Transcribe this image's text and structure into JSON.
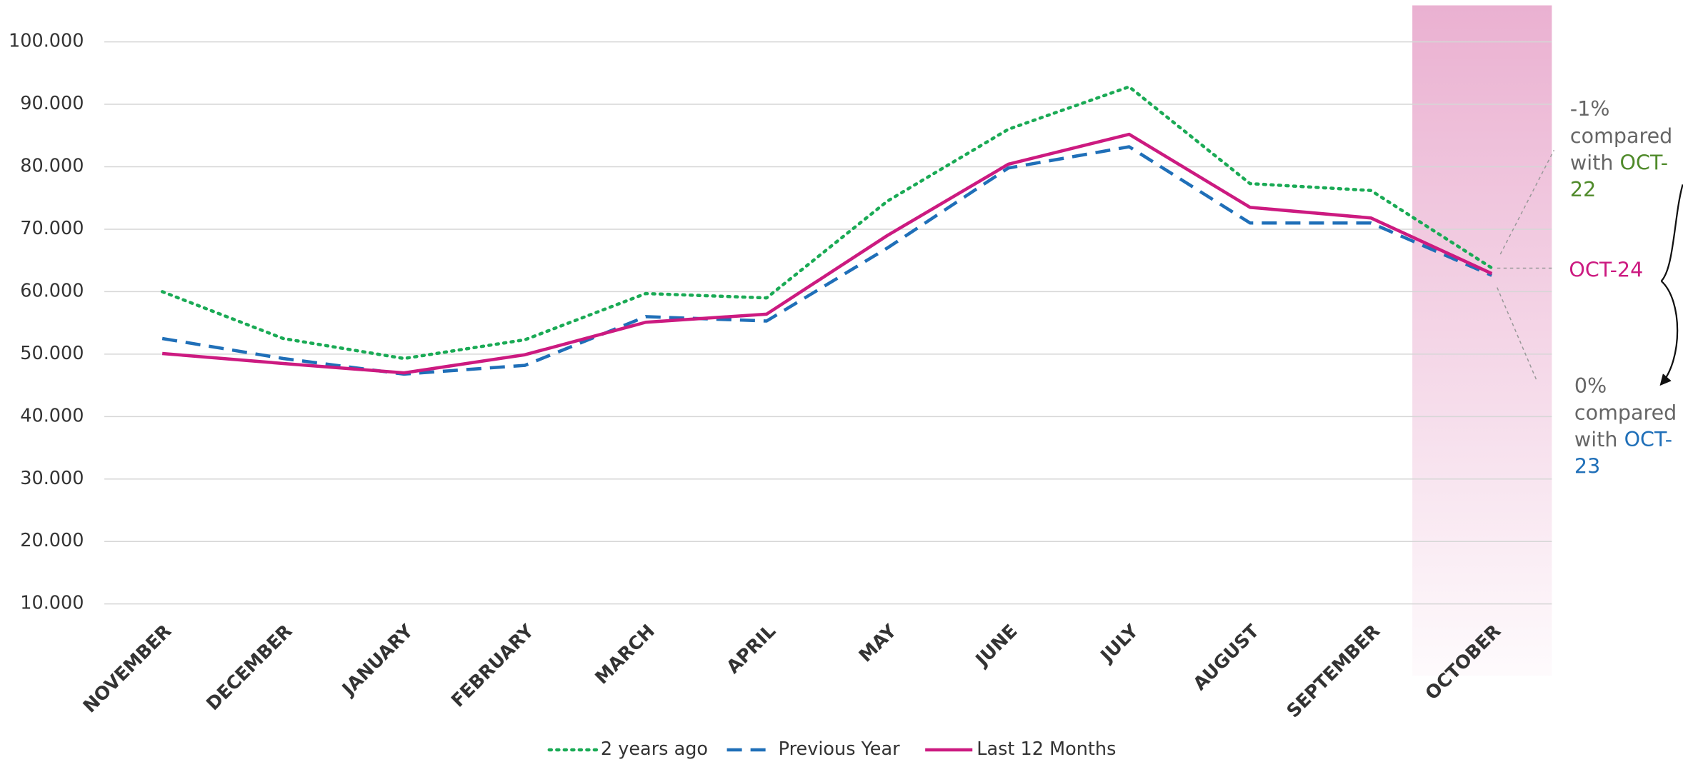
{
  "chart_data": {
    "type": "line",
    "categories": [
      "NOVEMBER",
      "DECEMBER",
      "JANUARY",
      "FEBRUARY",
      "MARCH",
      "APRIL",
      "MAY",
      "JUNE",
      "JULY",
      "AUGUST",
      "SEPTEMBER",
      "OCTOBER"
    ],
    "series": [
      {
        "name": "2 years ago",
        "color": "#1aaa55",
        "style": "dotted",
        "values": [
          60000,
          52500,
          49300,
          52300,
          59700,
          59000,
          74500,
          86000,
          92800,
          77300,
          76200,
          63800
        ]
      },
      {
        "name": "Previous Year",
        "color": "#1f6fb8",
        "style": "dashed",
        "values": [
          52500,
          49300,
          46800,
          48200,
          56000,
          55300,
          67000,
          79800,
          83200,
          71000,
          71000,
          62600
        ]
      },
      {
        "name": "Last 12 Months",
        "color": "#cc1a80",
        "style": "solid",
        "values": [
          50100,
          48500,
          47000,
          49900,
          55100,
          56400,
          69000,
          80400,
          85200,
          73500,
          71800,
          62900
        ]
      }
    ],
    "ylim": [
      10000,
      100000
    ],
    "yticks": [
      {
        "value": 10000,
        "label": "10.000"
      },
      {
        "value": 20000,
        "label": "20.000"
      },
      {
        "value": 30000,
        "label": "30.000"
      },
      {
        "value": 40000,
        "label": "40.000"
      },
      {
        "value": 50000,
        "label": "50.000"
      },
      {
        "value": 60000,
        "label": "60.000"
      },
      {
        "value": 70000,
        "label": "70.000"
      },
      {
        "value": 80000,
        "label": "80.000"
      },
      {
        "value": 90000,
        "label": "90.000"
      },
      {
        "value": 100000,
        "label": "100.000"
      }
    ],
    "grid": true,
    "legend": "bottom",
    "highlight_category": 11,
    "annotations": {
      "current": {
        "label": "OCT-24",
        "color": "#cc1a80"
      },
      "vs_two_years": {
        "change": "-1%",
        "text": "compared with",
        "period": "OCT-22",
        "color": "#4f8a2a"
      },
      "vs_previous": {
        "change": "0%",
        "text": "compared with",
        "period": "OCT-23",
        "color": "#1f6fb8"
      }
    }
  }
}
